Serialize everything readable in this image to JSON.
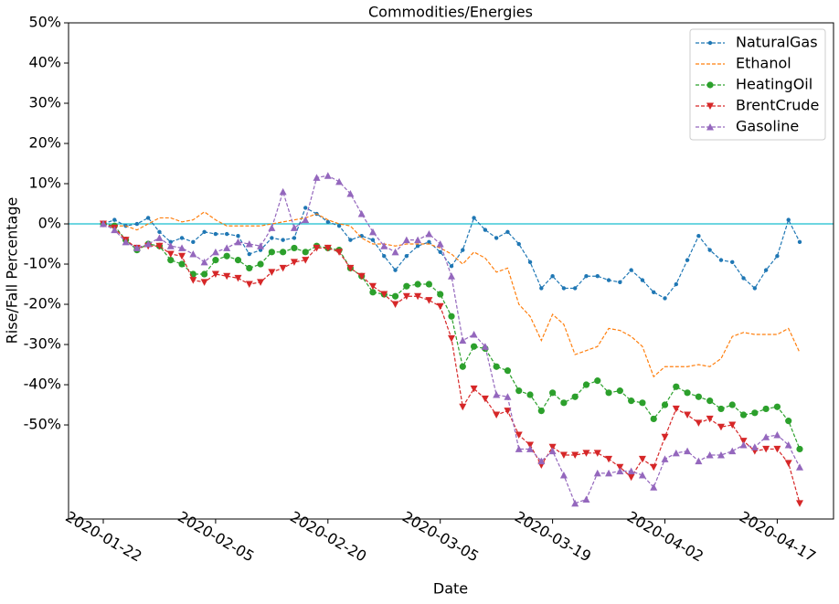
{
  "chart_data": {
    "type": "line",
    "title": "Commodities/Energies",
    "x_label": "Date",
    "y_label": "Rise/Fall Percentage",
    "categories": [
      "2020-01-22",
      null,
      null,
      null,
      null,
      null,
      null,
      null,
      null,
      null,
      "2020-02-05",
      null,
      null,
      null,
      null,
      null,
      null,
      null,
      null,
      null,
      "2020-02-20",
      null,
      null,
      null,
      null,
      null,
      null,
      null,
      null,
      null,
      "2020-03-05",
      null,
      null,
      null,
      null,
      null,
      null,
      null,
      null,
      null,
      "2020-03-19",
      null,
      null,
      null,
      null,
      null,
      null,
      null,
      null,
      null,
      "2020-04-02",
      null,
      null,
      null,
      null,
      null,
      null,
      null,
      null,
      null,
      "2020-04-17",
      null,
      null
    ],
    "ylim": [
      -73.4,
      50
    ],
    "yticks": [
      {
        "value": 50,
        "label": "50%"
      },
      {
        "value": 40,
        "label": "40%"
      },
      {
        "value": 30,
        "label": "30%"
      },
      {
        "value": 20,
        "label": "20%"
      },
      {
        "value": 10,
        "label": "10%"
      },
      {
        "value": 0,
        "label": "0%"
      },
      {
        "value": -10,
        "label": "-10%"
      },
      {
        "value": -20,
        "label": "-20%"
      },
      {
        "value": -30,
        "label": "-30%"
      },
      {
        "value": -40,
        "label": "-40%"
      },
      {
        "value": -50,
        "label": "-50%"
      }
    ],
    "grid": false,
    "legend": "upper right",
    "line_style": "dashed",
    "zero_line_color": "#17becf",
    "series": [
      {
        "name": "NaturalGas",
        "color": "#1f77b4",
        "marker": "point",
        "values": [
          0,
          1,
          -0.5,
          0,
          1.5,
          -2,
          -4.5,
          -3.5,
          -4.5,
          -2,
          -2.5,
          -2.5,
          -3,
          -7.5,
          -6.5,
          -3.5,
          -4,
          -3.5,
          4,
          2.5,
          0.5,
          -0.5,
          -4,
          -3,
          -4,
          -8,
          -11.5,
          -8,
          -5.5,
          -4.5,
          -7,
          -10.5,
          -6.5,
          1.5,
          -1.5,
          -3.5,
          -2,
          -5,
          -9.5,
          -16,
          -13,
          -16,
          -16,
          -13,
          -13,
          -14,
          -14.5,
          -11.5,
          -14,
          -17,
          -18.5,
          -15,
          -9,
          -3,
          -6.5,
          -9,
          -9.5,
          -13.5,
          -16,
          -11.5,
          -8,
          1,
          -4.5
        ]
      },
      {
        "name": "Ethanol",
        "color": "#ff7f0e",
        "marker": "none",
        "values": [
          0,
          -0.5,
          -0.5,
          -1.5,
          0,
          1.5,
          1.5,
          0.5,
          1,
          3,
          1,
          -0.5,
          -0.5,
          -0.5,
          -0.5,
          0,
          0.5,
          1,
          1.5,
          2.5,
          1,
          0,
          -0.5,
          -3.5,
          -5,
          -5,
          -5.5,
          -5,
          -5,
          -5,
          -6,
          -7.5,
          -10,
          -7,
          -8.5,
          -12,
          -11,
          -20,
          -23,
          -29,
          -22.5,
          -25,
          -32.5,
          -31.5,
          -30.5,
          -26,
          -26.5,
          -28,
          -30.5,
          -38,
          -35.5,
          -35.5,
          -35.5,
          -35,
          -35.5,
          -33.5,
          -28,
          -27,
          -27.5,
          -27.5,
          -27.5,
          -26,
          -32
        ]
      },
      {
        "name": "HeatingOil",
        "color": "#2ca02c",
        "marker": "circle",
        "values": [
          0,
          -0.5,
          -4,
          -6.5,
          -5,
          -5.5,
          -9,
          -10,
          -12.5,
          -12.5,
          -9,
          -8,
          -9,
          -11,
          -10,
          -7,
          -7,
          -6,
          -7,
          -5.5,
          -6,
          -6.5,
          -11,
          -13,
          -17,
          -17.5,
          -18,
          -15.5,
          -15,
          -15,
          -17.5,
          -23,
          -35.5,
          -30.5,
          -31,
          -35.5,
          -36.5,
          -41.5,
          -42.5,
          -46.5,
          -42,
          -44.5,
          -43,
          -40,
          -39,
          -42,
          -41.5,
          -44,
          -44.5,
          -48.5,
          -45,
          -40.5,
          -42,
          -43,
          -44,
          -46,
          -45,
          -47.5,
          -47,
          -46,
          -45.5,
          -49,
          -56
        ]
      },
      {
        "name": "BrentCrude",
        "color": "#d62728",
        "marker": "triangle_down",
        "values": [
          0,
          -1,
          -4,
          -6,
          -5.5,
          -5.5,
          -7.5,
          -8,
          -14,
          -14.5,
          -12.5,
          -13,
          -13.5,
          -15,
          -14.5,
          -12,
          -11,
          -9.5,
          -9,
          -6,
          -6,
          -7,
          -11,
          -13,
          -15.5,
          -17.5,
          -20,
          -18,
          -18,
          -19,
          -20.5,
          -28.5,
          -45.5,
          -41,
          -43.5,
          -47.5,
          -46.5,
          -52.5,
          -55,
          -60,
          -55.5,
          -57.5,
          -57.5,
          -57,
          -57,
          -58.5,
          -60.5,
          -63,
          -58.5,
          -60.5,
          -53,
          -46,
          -47.5,
          -49.5,
          -48.5,
          -50.5,
          -50,
          -54,
          -56.5,
          -56,
          -56,
          -59.5,
          -69.5
        ]
      },
      {
        "name": "Gasoline",
        "color": "#9467bd",
        "marker": "triangle_up",
        "values": [
          0,
          -1.5,
          -4.5,
          -6,
          -5,
          -3.5,
          -5.5,
          -6,
          -7.5,
          -9.5,
          -7,
          -6,
          -4.5,
          -5,
          -5.5,
          -1,
          8,
          -1,
          1,
          11.5,
          12,
          10.5,
          7.5,
          2.5,
          -2,
          -5.5,
          -7,
          -4,
          -4,
          -2.5,
          -5,
          -13,
          -29,
          -27.5,
          -30.5,
          -42.5,
          -43,
          -56,
          -56,
          -59,
          -56.5,
          -62.5,
          -69.5,
          -68.5,
          -62,
          -62,
          -61.5,
          -61.5,
          -62.5,
          -65.5,
          -58.5,
          -57,
          -56.5,
          -59,
          -57.5,
          -57.5,
          -56.5,
          -55,
          -55.5,
          -53,
          -52.5,
          -55,
          -60.5
        ]
      }
    ]
  }
}
